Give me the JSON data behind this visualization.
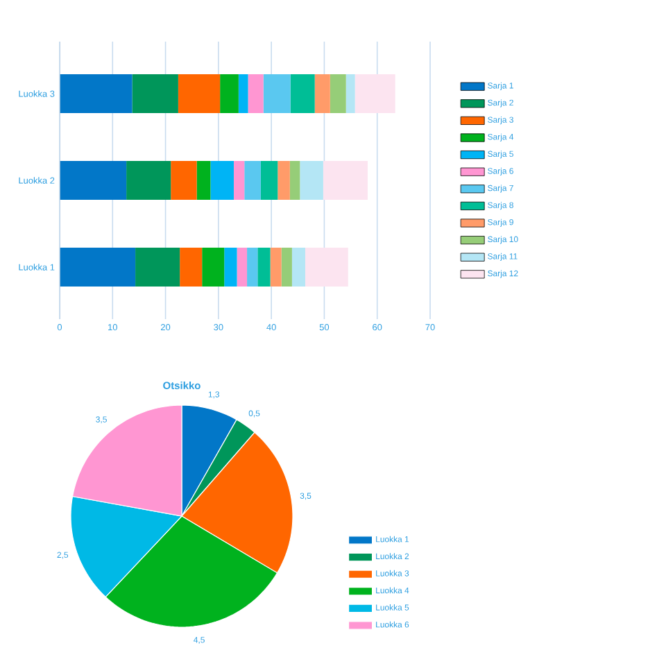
{
  "chart_data": [
    {
      "type": "bar",
      "orientation": "horizontal",
      "stacked": true,
      "categories": [
        "Luokka 3",
        "Luokka 2",
        "Luokka 1"
      ],
      "xlim": [
        0,
        70
      ],
      "xticks": [
        0,
        10,
        20,
        30,
        40,
        50,
        60,
        70
      ],
      "grid": "x",
      "legend": "right",
      "series": [
        {
          "name": "Sarja 1",
          "color": "#0277c8",
          "values": [
            13.7,
            12.6,
            14.3
          ]
        },
        {
          "name": "Sarja 2",
          "color": "#00965a",
          "values": [
            8.7,
            8.4,
            8.4
          ]
        },
        {
          "name": "Sarja 3",
          "color": "#ff6600",
          "values": [
            7.9,
            4.9,
            4.2
          ]
        },
        {
          "name": "Sarja 4",
          "color": "#00b21e",
          "values": [
            3.5,
            2.6,
            4.2
          ]
        },
        {
          "name": "Sarja 5",
          "color": "#00b4f5",
          "values": [
            1.8,
            4.4,
            2.4
          ]
        },
        {
          "name": "Sarja 6",
          "color": "#ff96d2",
          "values": [
            2.9,
            2.0,
            1.9
          ]
        },
        {
          "name": "Sarja 7",
          "color": "#5ac8f0",
          "values": [
            5.1,
            3.1,
            2.0
          ]
        },
        {
          "name": "Sarja 8",
          "color": "#00be96",
          "values": [
            4.6,
            3.2,
            2.4
          ]
        },
        {
          "name": "Sarja 9",
          "color": "#ff9b69",
          "values": [
            2.9,
            2.3,
            2.1
          ]
        },
        {
          "name": "Sarja 10",
          "color": "#96cd78",
          "values": [
            3.0,
            1.9,
            2.0
          ]
        },
        {
          "name": "Sarja 11",
          "color": "#b4e6f5",
          "values": [
            1.7,
            4.4,
            2.5
          ]
        },
        {
          "name": "Sarja 12",
          "color": "#fce4f0",
          "values": [
            7.6,
            8.4,
            8.1
          ]
        }
      ]
    },
    {
      "type": "pie",
      "title": "Otsikko",
      "legend": "right",
      "categories": [
        "Luokka 1",
        "Luokka 2",
        "Luokka 3",
        "Luokka 4",
        "Luokka 5",
        "Luokka 6"
      ],
      "values": [
        1.3,
        0.5,
        3.5,
        4.5,
        2.5,
        3.5
      ],
      "value_labels": [
        "1,3",
        "0,5",
        "3,5",
        "4,5",
        "2,5",
        "3,5"
      ],
      "colors": [
        "#0277c8",
        "#00965a",
        "#ff6600",
        "#00b21e",
        "#00b9e6",
        "#ff96d2"
      ]
    }
  ]
}
